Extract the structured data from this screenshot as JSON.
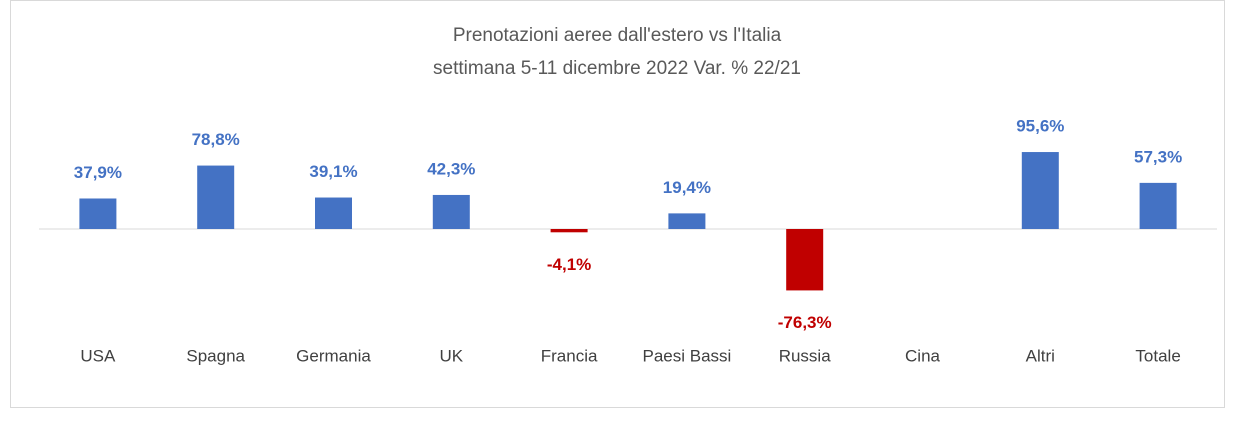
{
  "chart_data": {
    "type": "bar",
    "title": "Prenotazioni aeree dall'estero vs l'Italia",
    "subtitle": "settimana 5-11 dicembre 2022 Var. % 22/21",
    "categories": [
      "USA",
      "Spagna",
      "Germania",
      "UK",
      "Francia",
      "Paesi Bassi",
      "Russia",
      "Cina",
      "Altri",
      "Totale"
    ],
    "values": [
      37.9,
      78.8,
      39.1,
      42.3,
      -4.1,
      19.4,
      -76.3,
      null,
      95.6,
      57.3
    ],
    "value_labels": [
      "37,9%",
      "78,8%",
      "39,1%",
      "42,3%",
      "-4,1%",
      "19,4%",
      "-76,3%",
      null,
      "95,6%",
      "57,3%"
    ],
    "color": "#4472c4",
    "negative_color": "#c00000"
  }
}
